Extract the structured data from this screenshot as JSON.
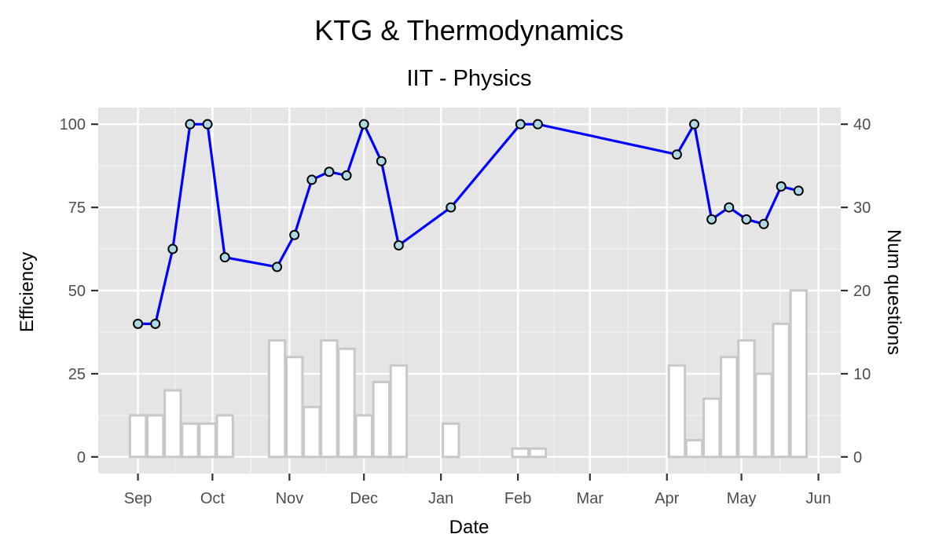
{
  "chart_data": {
    "type": "line",
    "title": "KTG & Thermodynamics",
    "subtitle": "IIT - Physics",
    "xlabel": "Date",
    "ylabel": "Efficiency",
    "y2label": "Num questions",
    "x_ticks": [
      {
        "date": "2019-09-01",
        "label": "Sep"
      },
      {
        "date": "2019-10-01",
        "label": "Oct"
      },
      {
        "date": "2019-11-01",
        "label": "Nov"
      },
      {
        "date": "2019-12-01",
        "label": "Dec"
      },
      {
        "date": "2020-01-01",
        "label": "Jan"
      },
      {
        "date": "2020-02-01",
        "label": "Feb"
      },
      {
        "date": "2020-03-01",
        "label": "Mar"
      },
      {
        "date": "2020-04-01",
        "label": "Apr"
      },
      {
        "date": "2020-05-01",
        "label": "May"
      },
      {
        "date": "2020-06-01",
        "label": "Jun"
      }
    ],
    "xlim": [
      "2019-08-16",
      "2020-06-10"
    ],
    "ylim": [
      -5,
      105
    ],
    "y_ticks": [
      0,
      25,
      50,
      75,
      100
    ],
    "y2lim": [
      -2,
      42
    ],
    "y2_ticks": [
      0,
      10,
      20,
      30,
      40
    ],
    "grid": true,
    "line_color": "#0000ff",
    "point_fill": "#add8e6",
    "bar_stroke": "#c8c8c8",
    "panel_bg": "#e5e5e5",
    "efficiency": [
      {
        "date": "2019-09-01",
        "value": 40
      },
      {
        "date": "2019-09-08",
        "value": 40
      },
      {
        "date": "2019-09-15",
        "value": 62.5
      },
      {
        "date": "2019-09-22",
        "value": 100
      },
      {
        "date": "2019-09-29",
        "value": 100
      },
      {
        "date": "2019-10-06",
        "value": 60
      },
      {
        "date": "2019-10-27",
        "value": 57.1
      },
      {
        "date": "2019-11-03",
        "value": 66.7
      },
      {
        "date": "2019-11-10",
        "value": 83.3
      },
      {
        "date": "2019-11-17",
        "value": 85.7
      },
      {
        "date": "2019-11-24",
        "value": 84.6
      },
      {
        "date": "2019-12-01",
        "value": 100
      },
      {
        "date": "2019-12-08",
        "value": 88.9
      },
      {
        "date": "2019-12-15",
        "value": 63.6
      },
      {
        "date": "2020-01-05",
        "value": 75
      },
      {
        "date": "2020-02-02",
        "value": 100
      },
      {
        "date": "2020-02-09",
        "value": 100
      },
      {
        "date": "2020-04-05",
        "value": 90.9
      },
      {
        "date": "2020-04-12",
        "value": 100
      },
      {
        "date": "2020-04-19",
        "value": 71.4
      },
      {
        "date": "2020-04-26",
        "value": 75
      },
      {
        "date": "2020-05-03",
        "value": 71.4
      },
      {
        "date": "2020-05-10",
        "value": 70
      },
      {
        "date": "2020-05-17",
        "value": 81.3
      },
      {
        "date": "2020-05-24",
        "value": 80
      }
    ],
    "num_questions": [
      {
        "date": "2019-09-01",
        "value": 5
      },
      {
        "date": "2019-09-08",
        "value": 5
      },
      {
        "date": "2019-09-15",
        "value": 8
      },
      {
        "date": "2019-09-22",
        "value": 4
      },
      {
        "date": "2019-09-29",
        "value": 4
      },
      {
        "date": "2019-10-06",
        "value": 5
      },
      {
        "date": "2019-10-27",
        "value": 14
      },
      {
        "date": "2019-11-03",
        "value": 12
      },
      {
        "date": "2019-11-10",
        "value": 6
      },
      {
        "date": "2019-11-17",
        "value": 14
      },
      {
        "date": "2019-11-24",
        "value": 13
      },
      {
        "date": "2019-12-01",
        "value": 5
      },
      {
        "date": "2019-12-08",
        "value": 9
      },
      {
        "date": "2019-12-15",
        "value": 11
      },
      {
        "date": "2020-01-05",
        "value": 4
      },
      {
        "date": "2020-02-02",
        "value": 1
      },
      {
        "date": "2020-02-09",
        "value": 1
      },
      {
        "date": "2020-04-05",
        "value": 11
      },
      {
        "date": "2020-04-12",
        "value": 2
      },
      {
        "date": "2020-04-19",
        "value": 7
      },
      {
        "date": "2020-04-26",
        "value": 12
      },
      {
        "date": "2020-05-03",
        "value": 14
      },
      {
        "date": "2020-05-10",
        "value": 10
      },
      {
        "date": "2020-05-17",
        "value": 16
      },
      {
        "date": "2020-05-24",
        "value": 20
      }
    ]
  }
}
